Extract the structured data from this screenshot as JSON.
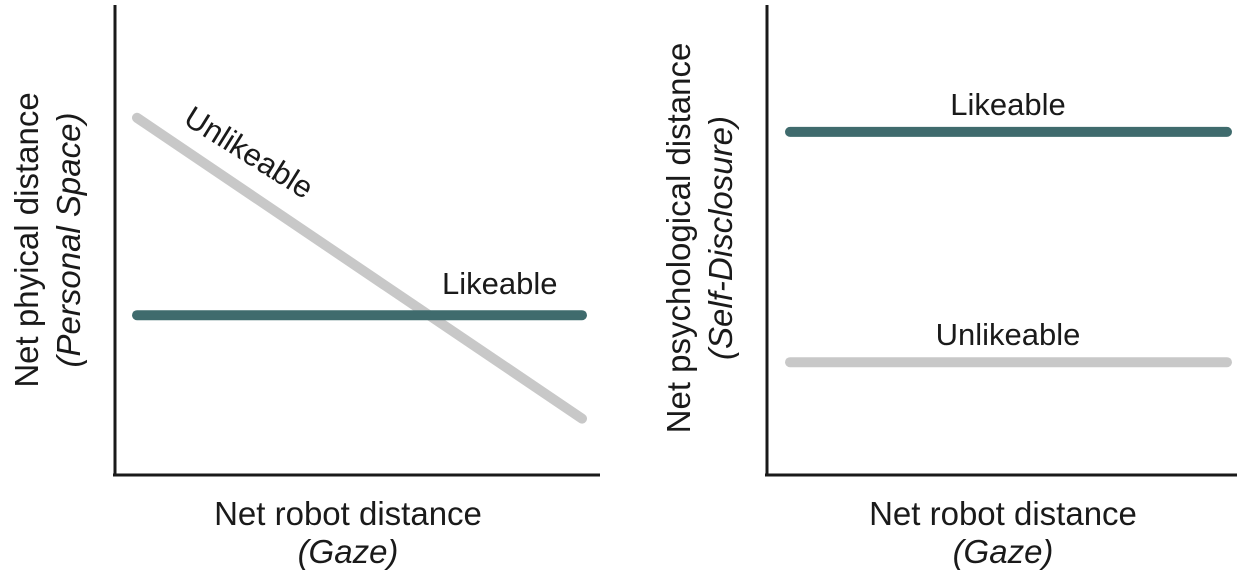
{
  "chart_data": [
    {
      "type": "line",
      "xlabel": "Net robot distance",
      "xlabel_sub": "(Gaze)",
      "ylabel": "Net phyical distance",
      "ylabel_sub": "(Personal Space)",
      "xlim": [
        0,
        1
      ],
      "ylim": [
        0,
        1
      ],
      "grid": false,
      "series": [
        {
          "name": "Unlikeable",
          "color": "#c8c8c8",
          "x": [
            0,
            1
          ],
          "y": [
            0.76,
            0.12
          ]
        },
        {
          "name": "Likeable",
          "color": "#3f6b6d",
          "x": [
            0,
            1
          ],
          "y": [
            0.34,
            0.34
          ]
        }
      ]
    },
    {
      "type": "line",
      "xlabel": "Net robot distance",
      "xlabel_sub": "(Gaze)",
      "ylabel": "Net psychological distance",
      "ylabel_sub": "(Self-Disclosure)",
      "xlim": [
        0,
        1
      ],
      "ylim": [
        0,
        1
      ],
      "grid": false,
      "series": [
        {
          "name": "Likeable",
          "color": "#3f6b6d",
          "x": [
            0,
            1
          ],
          "y": [
            0.73,
            0.73
          ]
        },
        {
          "name": "Unlikeable",
          "color": "#c8c8c8",
          "x": [
            0,
            1
          ],
          "y": [
            0.24,
            0.24
          ]
        }
      ]
    }
  ]
}
